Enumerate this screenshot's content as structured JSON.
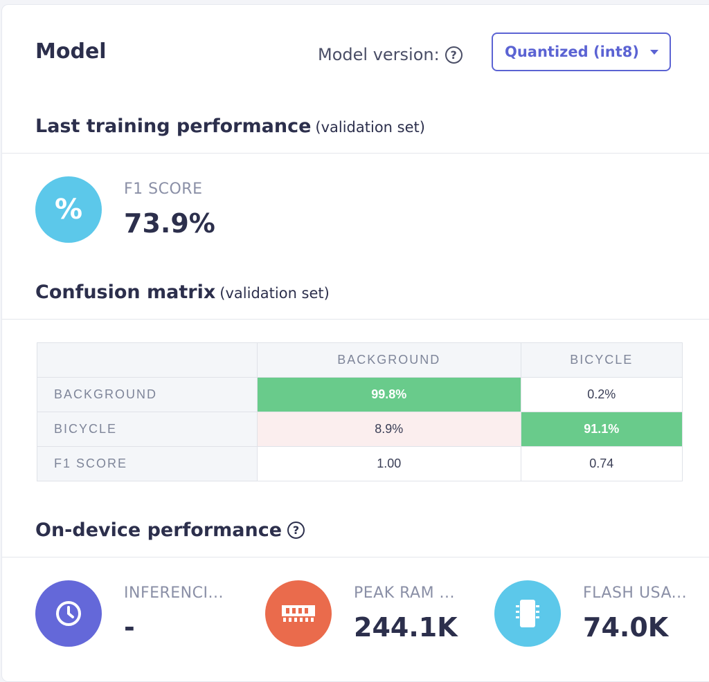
{
  "header": {
    "title": "Model",
    "version_label": "Model version:",
    "version_value": "Quantized (int8)"
  },
  "training": {
    "title": "Last training performance",
    "subtitle": "(validation set)",
    "f1_label": "F1 SCORE",
    "f1_value": "73.9%",
    "icon": "percent-icon",
    "icon_glyph": "%"
  },
  "confusion": {
    "title": "Confusion matrix",
    "subtitle": "(validation set)",
    "columns": [
      "",
      "BACKGROUND",
      "BICYCLE"
    ],
    "rows": [
      {
        "label": "BACKGROUND",
        "cells": [
          "99.8%",
          "0.2%"
        ]
      },
      {
        "label": "BICYCLE",
        "cells": [
          "8.9%",
          "91.1%"
        ]
      },
      {
        "label": "F1 SCORE",
        "cells": [
          "1.00",
          "0.74"
        ]
      }
    ]
  },
  "device": {
    "title": "On-device performance",
    "metrics": [
      {
        "label": "INFERENCI...",
        "value": "-",
        "icon": "clock-icon",
        "color": "#6468d9"
      },
      {
        "label": "PEAK RAM ...",
        "value": "244.1K",
        "icon": "ram-icon",
        "color": "#ea6b4c"
      },
      {
        "label": "FLASH USA...",
        "value": "74.0K",
        "icon": "chip-icon",
        "color": "#5cc8ea"
      }
    ]
  },
  "colors": {
    "accent": "#5b63d3",
    "good_cell": "#69cb8b",
    "bad_cell": "#fbeeee",
    "f1_icon": "#5cc8ea"
  }
}
